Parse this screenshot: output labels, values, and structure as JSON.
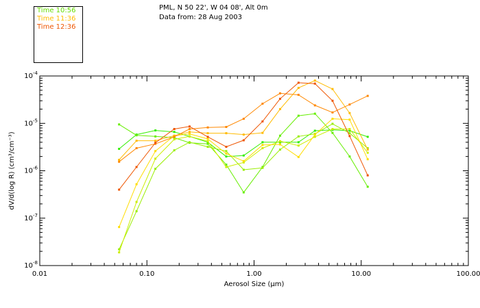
{
  "header": {
    "location": "PML, N 50 22', W 04 08', Alt 0m",
    "date": "Data from: 28 Aug 2003"
  },
  "legend": [
    {
      "label": "Time 10:56",
      "color": "#66dd00"
    },
    {
      "label": "Time 11:36",
      "color": "#ffbb00"
    },
    {
      "label": "Time 12:36",
      "color": "#ee5500"
    }
  ],
  "chart_data": {
    "type": "line",
    "xlabel": "Aerosol Size (μm)",
    "ylabel": "dV/d(log R) (cm³/cm⁻³)",
    "xscale": "log",
    "yscale": "log",
    "xlim": [
      0.01,
      100
    ],
    "ylim": [
      1e-08,
      0.0001
    ],
    "x_ticks": [
      "0.01",
      "0.10",
      "1.00",
      "10.00",
      "100.00"
    ],
    "y_ticks": [
      "10⁻⁸",
      "10⁻⁷",
      "10⁻⁶",
      "10⁻⁵",
      "10⁻⁴"
    ],
    "x": [
      0.055,
      0.08,
      0.12,
      0.18,
      0.25,
      0.37,
      0.55,
      0.8,
      1.2,
      1.75,
      2.6,
      3.7,
      5.4,
      7.8,
      11.5
    ],
    "series": [
      {
        "color": "#33ee00",
        "values": [
          2.9e-06,
          5.8e-06,
          7.1e-06,
          6.6e-06,
          5.3e-06,
          4e-06,
          2e-06,
          2.1e-06,
          4e-06,
          4e-06,
          4e-06,
          7e-06,
          7.3e-06,
          7e-06,
          5.2e-06
        ]
      },
      {
        "color": "#66ee00",
        "values": [
          9.5e-06,
          5.6e-06,
          5.3e-06,
          5e-06,
          3.9e-06,
          3.7e-06,
          1.35e-06,
          3.5e-07,
          1.2e-06,
          5.5e-06,
          1.45e-05,
          1.6e-05,
          6.3e-06,
          2e-06,
          4.6e-07
        ]
      },
      {
        "color": "#99ee00",
        "values": [
          2.2e-08,
          1.4e-07,
          1.1e-06,
          2.7e-06,
          4e-06,
          3.2e-06,
          2.6e-06,
          1.05e-06,
          1.15e-06,
          2.8e-06,
          5.3e-06,
          6e-06,
          9.8e-06,
          6.2e-06,
          3e-06
        ]
      },
      {
        "color": "#ccee00",
        "values": [
          1.9e-08,
          2.2e-07,
          1.8e-06,
          4.6e-06,
          5.3e-06,
          4.2e-06,
          1.2e-06,
          1.5e-06,
          3e-06,
          4.2e-06,
          3.4e-06,
          5.2e-06,
          7.6e-06,
          7.6e-06,
          2.4e-06
        ]
      },
      {
        "color": "#ffdd00",
        "values": [
          6.5e-08,
          5.2e-07,
          2.6e-06,
          5.5e-06,
          6e-06,
          4.7e-06,
          2.3e-06,
          1.6e-06,
          3.5e-06,
          3.6e-06,
          1.95e-06,
          5.8e-06,
          1.25e-05,
          1.2e-05,
          1.75e-06
        ]
      },
      {
        "color": "#ffbb00",
        "values": [
          1.7e-06,
          4.3e-06,
          4.3e-06,
          5.5e-06,
          6.6e-06,
          6.2e-06,
          6.2e-06,
          5.8e-06,
          6.3e-06,
          2e-05,
          5.6e-05,
          8e-05,
          5.3e-05,
          1.65e-05,
          2.8e-06
        ]
      },
      {
        "color": "#ff8800",
        "values": [
          1.55e-06,
          3e-06,
          3.7e-06,
          5.2e-06,
          7.6e-06,
          8.2e-06,
          8.4e-06,
          1.25e-05,
          2.6e-05,
          4.3e-05,
          4e-05,
          2.4e-05,
          1.7e-05,
          2.5e-05,
          3.8e-05
        ]
      },
      {
        "color": "#ee5500",
        "values": [
          4e-07,
          1.2e-06,
          3.9e-06,
          7.6e-06,
          8.6e-06,
          5.2e-06,
          3.2e-06,
          4.4e-06,
          1.1e-05,
          3.3e-05,
          7.2e-05,
          6.9e-05,
          3e-05,
          5.4e-06,
          8e-07
        ]
      }
    ]
  }
}
